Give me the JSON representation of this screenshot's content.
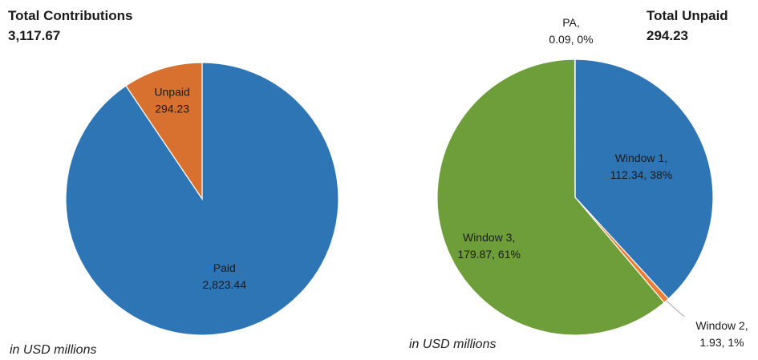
{
  "chart_data": [
    {
      "type": "pie",
      "title": "Total Contributions",
      "subtitle": "3,117.67",
      "note": "in USD millions",
      "slices": [
        {
          "label": "Unpaid",
          "value": 294.23,
          "value_text": "294.23",
          "color": "#D8702F"
        },
        {
          "label": "Paid",
          "value": 2823.44,
          "value_text": "2,823.44",
          "color": "#2E75B6"
        }
      ]
    },
    {
      "type": "pie",
      "title": "Total Unpaid",
      "subtitle": "294.23",
      "note": "in USD millions",
      "slices": [
        {
          "label": "Window 1,",
          "value": 112.34,
          "value_text": "112.34, 38%",
          "color": "#2E75B6"
        },
        {
          "label": "Window 2,",
          "value": 1.93,
          "value_text": "1.93, 1%",
          "color": "#ED7D31"
        },
        {
          "label": "Window 3,",
          "value": 179.87,
          "value_text": "179.87, 61%",
          "color": "#6E9E3A"
        },
        {
          "label": "PA,",
          "value": 0.09,
          "value_text": "0.09, 0%",
          "color": "#A5A5A5"
        }
      ]
    }
  ]
}
